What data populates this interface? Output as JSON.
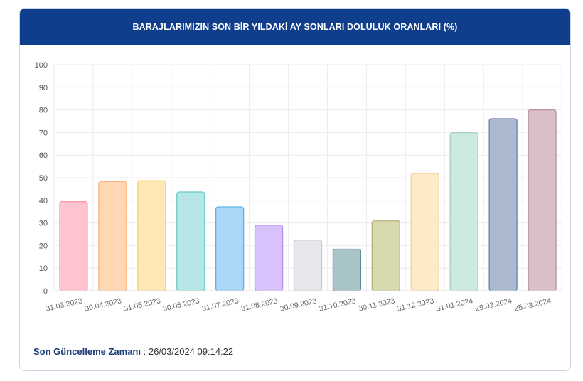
{
  "title": "BARAJLARIMIZIN SON BİR YILDAKİ AY SONLARI DOLULUK ORANLARI (%)",
  "footer": {
    "label": "Son Güncelleme Zamanı",
    "separator": " : ",
    "value": "26/03/2024 09:14:22"
  },
  "chart_data": {
    "type": "bar",
    "title": "BARAJLARIMIZIN SON BİR YILDAKİ AY SONLARI DOLULUK ORANLARI (%)",
    "xlabel": "",
    "ylabel": "",
    "ylim": [
      0,
      100
    ],
    "yticks": [
      0,
      10,
      20,
      30,
      40,
      50,
      60,
      70,
      80,
      90,
      100
    ],
    "grid": true,
    "legend": "none",
    "categories": [
      "31.03.2023",
      "30.04.2023",
      "31.05.2023",
      "30.06.2023",
      "31.07.2023",
      "31.08.2023",
      "30.09.2023",
      "31.10.2023",
      "30.11.2023",
      "31.12.2023",
      "31.01.2024",
      "29.02.2024",
      "25.03.2024"
    ],
    "values": [
      39.4,
      48.3,
      48.7,
      43.7,
      37.1,
      29.0,
      22.4,
      18.4,
      30.9,
      51.9,
      69.9,
      76.1,
      80.0
    ],
    "fills": [
      "#ffc4cf",
      "#ffd8b3",
      "#ffe8b5",
      "#b6e6e6",
      "#a8d8f5",
      "#d9c2fb",
      "#e6e7ea",
      "#a9c4c8",
      "#d9d9ae",
      "#fcebc6",
      "#cdeade",
      "#acbad0",
      "#d9bfc6"
    ],
    "strokes": [
      "#ff9bb0",
      "#ffb07a",
      "#ffcf70",
      "#6cc9c9",
      "#5fb3e6",
      "#b08af5",
      "#c8c9ce",
      "#5b8a91",
      "#b0b07a",
      "#f5d48f",
      "#9fd3bd",
      "#6d80a3",
      "#b98f9b"
    ]
  }
}
